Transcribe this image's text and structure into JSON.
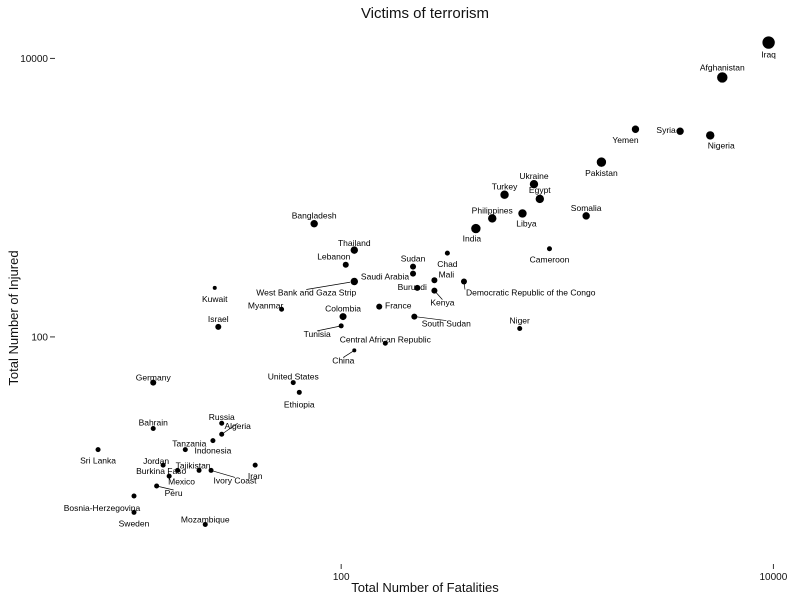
{
  "chart_data": {
    "type": "scatter",
    "title": "Victims of terrorism",
    "xlabel": "Total Number of Fatalities",
    "ylabel": "Total Number of Injured",
    "xscale": "log",
    "yscale": "log",
    "xlim": [
      5,
      10500
    ],
    "ylim": [
      2.5,
      16000
    ],
    "x_ticks": [
      {
        "value": 100,
        "label": "100"
      },
      {
        "value": 10000,
        "label": "10000"
      }
    ],
    "y_ticks": [
      {
        "value": 100,
        "label": "100"
      },
      {
        "value": 10000,
        "label": "10000"
      }
    ],
    "grid": false,
    "legend": "none",
    "points": [
      {
        "name": "Iraq",
        "x": 9500,
        "y": 13000,
        "size": 6.5
      },
      {
        "name": "Afghanistan",
        "x": 5800,
        "y": 7300,
        "size": 5.5
      },
      {
        "name": "Syria",
        "x": 3700,
        "y": 3000,
        "size": 4
      },
      {
        "name": "Nigeria",
        "x": 5100,
        "y": 2800,
        "size": 4.5
      },
      {
        "name": "Yemen",
        "x": 2300,
        "y": 3100,
        "size": 4
      },
      {
        "name": "Pakistan",
        "x": 1600,
        "y": 1800,
        "size": 5
      },
      {
        "name": "Ukraine",
        "x": 780,
        "y": 1250,
        "size": 4.5
      },
      {
        "name": "Turkey",
        "x": 570,
        "y": 1050,
        "size": 4.5
      },
      {
        "name": "Egypt",
        "x": 830,
        "y": 980,
        "size": 4.5
      },
      {
        "name": "Philippines",
        "x": 500,
        "y": 710,
        "size": 4.5
      },
      {
        "name": "Libya",
        "x": 690,
        "y": 770,
        "size": 4.5
      },
      {
        "name": "Somalia",
        "x": 1360,
        "y": 740,
        "size": 4
      },
      {
        "name": "India",
        "x": 420,
        "y": 600,
        "size": 5
      },
      {
        "name": "Bangladesh",
        "x": 75,
        "y": 650,
        "size": 4
      },
      {
        "name": "Thailand",
        "x": 115,
        "y": 420,
        "size": 4
      },
      {
        "name": "Chad",
        "x": 310,
        "y": 400,
        "size": 2.5
      },
      {
        "name": "Cameroon",
        "x": 920,
        "y": 430,
        "size": 2.5
      },
      {
        "name": "Lebanon",
        "x": 105,
        "y": 330,
        "size": 3
      },
      {
        "name": "Sudan",
        "x": 215,
        "y": 320,
        "size": 3
      },
      {
        "name": "Saudi Arabia",
        "x": 215,
        "y": 285,
        "size": 3
      },
      {
        "name": "Mali",
        "x": 270,
        "y": 255,
        "size": 3
      },
      {
        "name": "Kuwait",
        "x": 26,
        "y": 225,
        "size": 2
      },
      {
        "name": "West Bank and Gaza Strip",
        "x": 115,
        "y": 250,
        "size": 4
      },
      {
        "name": "Democratic Republic of the Congo",
        "x": 370,
        "y": 250,
        "size": 3
      },
      {
        "name": "Burundi",
        "x": 225,
        "y": 225,
        "size": 3
      },
      {
        "name": "Kenya",
        "x": 270,
        "y": 215,
        "size": 3
      },
      {
        "name": "France",
        "x": 150,
        "y": 165,
        "size": 3
      },
      {
        "name": "Myanmar",
        "x": 53,
        "y": 158,
        "size": 2.5
      },
      {
        "name": "Colombia",
        "x": 102,
        "y": 140,
        "size": 3.5
      },
      {
        "name": "South Sudan",
        "x": 218,
        "y": 140,
        "size": 3
      },
      {
        "name": "Niger",
        "x": 670,
        "y": 115,
        "size": 2.5
      },
      {
        "name": "Israel",
        "x": 27,
        "y": 118,
        "size": 3
      },
      {
        "name": "Tunisia",
        "x": 100,
        "y": 120,
        "size": 2.5
      },
      {
        "name": "Central African Republic",
        "x": 160,
        "y": 90,
        "size": 2.5
      },
      {
        "name": "China",
        "x": 115,
        "y": 80,
        "size": 2
      },
      {
        "name": "Germany",
        "x": 13.5,
        "y": 47,
        "size": 3
      },
      {
        "name": "United States",
        "x": 60,
        "y": 47,
        "size": 2.5
      },
      {
        "name": "Ethiopia",
        "x": 64,
        "y": 40,
        "size": 2.5
      },
      {
        "name": "Russia",
        "x": 28,
        "y": 24,
        "size": 2.5
      },
      {
        "name": "Bahrain",
        "x": 13.5,
        "y": 22,
        "size": 2.5
      },
      {
        "name": "Algeria",
        "x": 28,
        "y": 20,
        "size": 2.5
      },
      {
        "name": "Indonesia",
        "x": 25.5,
        "y": 18,
        "size": 2.5
      },
      {
        "name": "Tanzania",
        "x": 19,
        "y": 15.5,
        "size": 2.5
      },
      {
        "name": "Sri Lanka",
        "x": 7.5,
        "y": 15.5,
        "size": 2.5
      },
      {
        "name": "Jordan",
        "x": 15,
        "y": 12,
        "size": 2.5
      },
      {
        "name": "Tajikistan",
        "x": 22,
        "y": 11,
        "size": 2.5
      },
      {
        "name": "Mexico",
        "x": 17.5,
        "y": 11,
        "size": 2.5
      },
      {
        "name": "Ivory Coast",
        "x": 25,
        "y": 11,
        "size": 2.5
      },
      {
        "name": "Iran",
        "x": 40,
        "y": 12,
        "size": 2.5
      },
      {
        "name": "Burkina Faso",
        "x": 16,
        "y": 10,
        "size": 2.5
      },
      {
        "name": "Peru",
        "x": 14,
        "y": 8.5,
        "size": 2.5
      },
      {
        "name": "Bosnia-Herzegovina",
        "x": 11,
        "y": 7.2,
        "size": 2.5
      },
      {
        "name": "Sweden",
        "x": 11,
        "y": 5.5,
        "size": 2.5
      },
      {
        "name": "Mozambique",
        "x": 23.5,
        "y": 4.5,
        "size": 2.5
      }
    ]
  }
}
